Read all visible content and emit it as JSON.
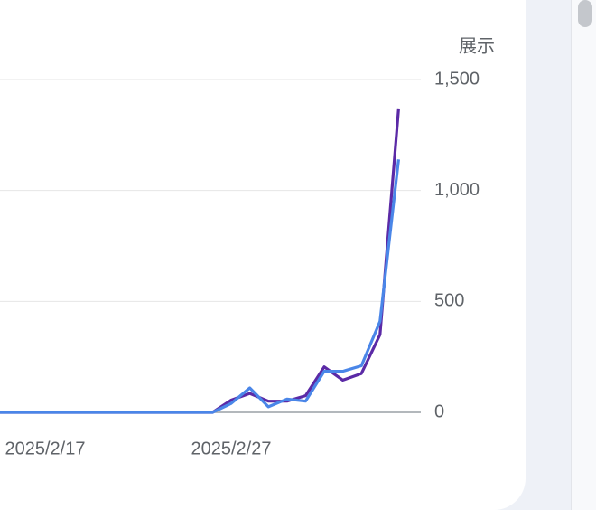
{
  "chart_data": {
    "type": "line",
    "y_label": "展示",
    "categories": [
      null,
      null,
      null,
      "2025/2/17",
      null,
      null,
      null,
      null,
      null,
      null,
      null,
      null,
      null,
      "2025/2/27",
      null,
      null,
      null,
      null,
      null,
      null,
      null,
      null,
      null
    ],
    "series": [
      {
        "name": null,
        "color": "#5b2aa6",
        "values": [
          0,
          0,
          0,
          0,
          0,
          0,
          0,
          0,
          0,
          0,
          0,
          0,
          0,
          55,
          85,
          50,
          50,
          75,
          205,
          145,
          175,
          350,
          1370
        ]
      },
      {
        "name": null,
        "color": "#4a86e8",
        "values": [
          0,
          0,
          0,
          0,
          0,
          0,
          0,
          0,
          0,
          0,
          0,
          0,
          0,
          40,
          110,
          25,
          60,
          50,
          185,
          185,
          210,
          410,
          1140
        ]
      }
    ],
    "ylim": [
      0,
      1500
    ],
    "yticks": [
      0,
      500,
      {
        "value": 1000,
        "label": "1,000"
      },
      {
        "value": 1500,
        "label": "1,500"
      }
    ],
    "grid": true
  }
}
